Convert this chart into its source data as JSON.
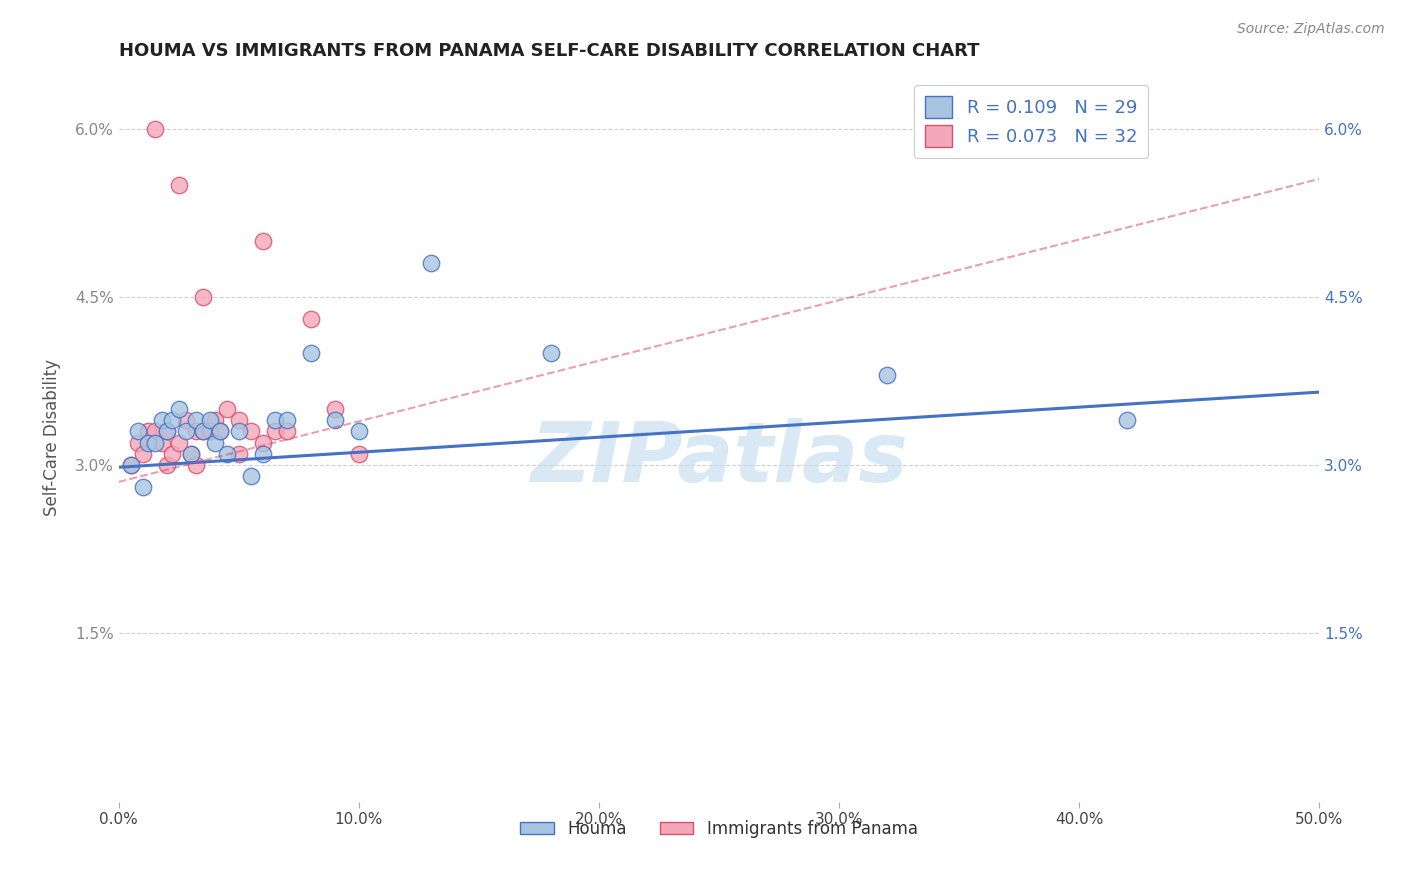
{
  "title": "HOUMA VS IMMIGRANTS FROM PANAMA SELF-CARE DISABILITY CORRELATION CHART",
  "source_text": "Source: ZipAtlas.com",
  "ylabel": "Self-Care Disability",
  "xmin": 0.0,
  "xmax": 0.5,
  "ymin": 0.0,
  "ymax": 0.065,
  "yticks": [
    0.0,
    0.015,
    0.03,
    0.045,
    0.06
  ],
  "ytick_labels": [
    "",
    "1.5%",
    "3.0%",
    "4.5%",
    "6.0%"
  ],
  "xticks": [
    0.0,
    0.1,
    0.2,
    0.3,
    0.4,
    0.5
  ],
  "xtick_labels": [
    "0.0%",
    "10.0%",
    "20.0%",
    "30.0%",
    "40.0%",
    "50.0%"
  ],
  "legend_labels": [
    "Houma",
    "Immigrants from Panama"
  ],
  "R_houma": 0.109,
  "N_houma": 29,
  "R_panama": 0.073,
  "N_panama": 32,
  "houma_color": "#a8c4e0",
  "panama_color": "#f4a7b9",
  "houma_line_color": "#4472c4",
  "panama_line_color": "#d94f6e",
  "houma_x": [
    0.005,
    0.008,
    0.01,
    0.012,
    0.015,
    0.018,
    0.02,
    0.022,
    0.025,
    0.028,
    0.03,
    0.032,
    0.035,
    0.038,
    0.04,
    0.042,
    0.045,
    0.05,
    0.055,
    0.06,
    0.065,
    0.07,
    0.08,
    0.09,
    0.1,
    0.13,
    0.18,
    0.32,
    0.42
  ],
  "houma_y": [
    0.03,
    0.033,
    0.028,
    0.032,
    0.032,
    0.034,
    0.033,
    0.034,
    0.035,
    0.033,
    0.031,
    0.034,
    0.033,
    0.034,
    0.032,
    0.033,
    0.031,
    0.033,
    0.029,
    0.031,
    0.034,
    0.034,
    0.04,
    0.034,
    0.033,
    0.048,
    0.04,
    0.038,
    0.034
  ],
  "panama_x": [
    0.005,
    0.008,
    0.01,
    0.012,
    0.015,
    0.018,
    0.02,
    0.02,
    0.022,
    0.025,
    0.028,
    0.03,
    0.032,
    0.032,
    0.035,
    0.038,
    0.04,
    0.042,
    0.045,
    0.05,
    0.05,
    0.055,
    0.06,
    0.065,
    0.07,
    0.08,
    0.09,
    0.1,
    0.06,
    0.035,
    0.025,
    0.015
  ],
  "panama_y": [
    0.03,
    0.032,
    0.031,
    0.033,
    0.033,
    0.032,
    0.033,
    0.03,
    0.031,
    0.032,
    0.034,
    0.031,
    0.033,
    0.03,
    0.033,
    0.033,
    0.034,
    0.033,
    0.035,
    0.034,
    0.031,
    0.033,
    0.032,
    0.033,
    0.033,
    0.043,
    0.035,
    0.031,
    0.05,
    0.045,
    0.055,
    0.06
  ],
  "houma_trend_x0": 0.0,
  "houma_trend_y0": 0.0298,
  "houma_trend_x1": 0.5,
  "houma_trend_y1": 0.0365,
  "panama_trend_x0": 0.0,
  "panama_trend_y0": 0.0285,
  "panama_trend_x1": 0.5,
  "panama_trend_y1": 0.0555,
  "watermark_text": "ZIPatlas",
  "watermark_color": "#c8dff0",
  "background_color": "#ffffff",
  "grid_color": "#d0d0d0"
}
